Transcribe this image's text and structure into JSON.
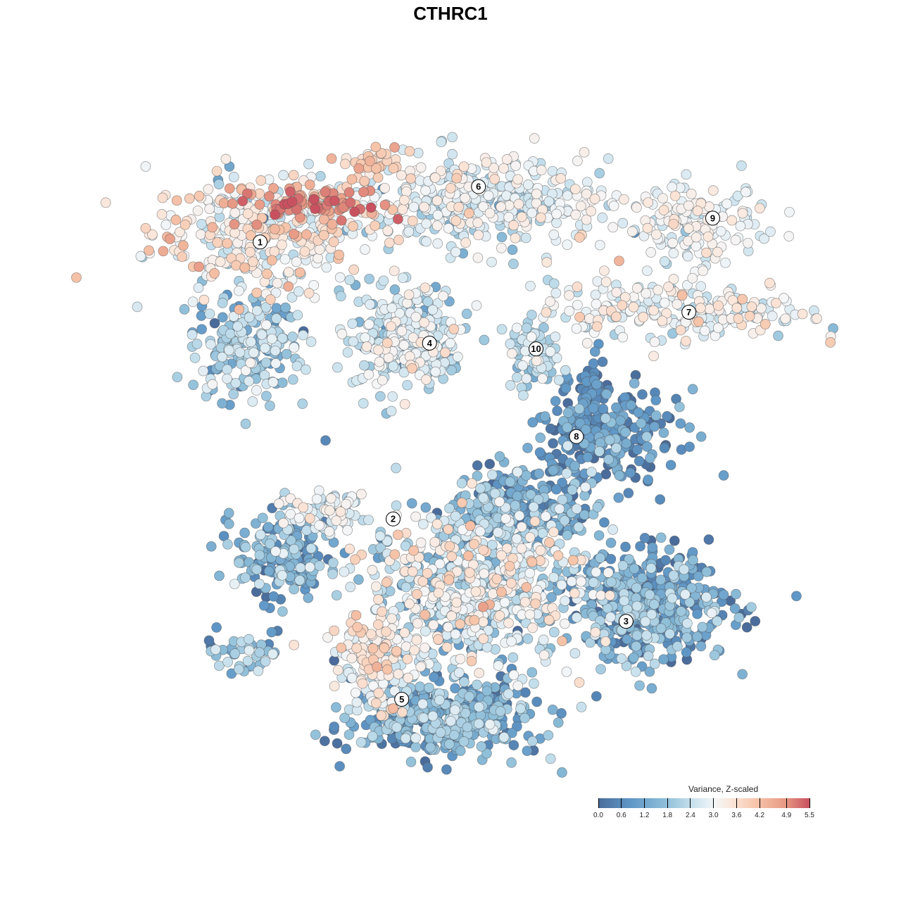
{
  "chart_data": {
    "type": "scatter",
    "title": "CTHRC1",
    "xlabel": "",
    "ylabel": "",
    "xlim": [
      -50,
      50
    ],
    "ylim": [
      -50,
      50
    ],
    "grid": false,
    "colorbar": {
      "title": "Variance, Z-scaled",
      "min": 0.0,
      "max": 5.5,
      "ticks": [
        0.0,
        0.6,
        1.2,
        1.8,
        2.4,
        3.0,
        3.6,
        4.2,
        4.9,
        5.5
      ],
      "tick_labels": [
        "0.0",
        "0.6",
        "1.2",
        "1.8",
        "2.4",
        "3.0",
        "3.6",
        "4.2",
        "4.9",
        "5.5"
      ],
      "placement": "bottom-right",
      "colors": [
        "#4a6c9b",
        "#5e96c6",
        "#8fbfd9",
        "#c9e2ee",
        "#f4f6f8",
        "#fbe6da",
        "#f6c4a9",
        "#e89b86",
        "#c9515f"
      ]
    },
    "cluster_labels": [
      {
        "label": "1",
        "x": -30.9,
        "y": 32.1
      },
      {
        "label": "2",
        "x": -10.8,
        "y": -10.9
      },
      {
        "label": "3",
        "x": 24.4,
        "y": -26.8
      },
      {
        "label": "4",
        "x": -5.3,
        "y": 16.4
      },
      {
        "label": "5",
        "x": -9.5,
        "y": -38.9
      },
      {
        "label": "6",
        "x": 2.1,
        "y": 40.7
      },
      {
        "label": "7",
        "x": 33.9,
        "y": 21.2
      },
      {
        "label": "8",
        "x": 16.9,
        "y": 1.9
      },
      {
        "label": "9",
        "x": 37.5,
        "y": 35.8
      },
      {
        "label": "10",
        "x": 10.8,
        "y": 15.5
      }
    ],
    "point_groups": [
      {
        "cx": -30.9,
        "cy": 33.6,
        "sx": 11.7,
        "sy": 6.5,
        "n": 350,
        "mean": 3.0,
        "sd": 0.8
      },
      {
        "cx": -23.4,
        "cy": 38.0,
        "sx": 8,
        "sy": 2,
        "n": 80,
        "mean": 4.8,
        "sd": 0.5
      },
      {
        "cx": -33,
        "cy": 16.1,
        "sx": 6,
        "sy": 6,
        "n": 200,
        "mean": 1.5,
        "sd": 0.6
      },
      {
        "cx": -13.8,
        "cy": 44.5,
        "sx": 3,
        "sy": 2,
        "n": 40,
        "mean": 3.8,
        "sd": 0.4
      },
      {
        "cx": 2.1,
        "cy": 38,
        "sx": 14,
        "sy": 5,
        "n": 400,
        "mean": 2.4,
        "sd": 0.6
      },
      {
        "cx": -8.5,
        "cy": 17.2,
        "sx": 6,
        "sy": 6,
        "n": 300,
        "mean": 2.2,
        "sd": 0.6
      },
      {
        "cx": 35.1,
        "cy": 34.7,
        "sx": 8,
        "sy": 4,
        "n": 150,
        "mean": 2.6,
        "sd": 0.5
      },
      {
        "cx": 31.9,
        "cy": 21.6,
        "sx": 14,
        "sy": 3.5,
        "n": 220,
        "mean": 2.7,
        "sd": 0.6
      },
      {
        "cx": 10.6,
        "cy": 15,
        "sx": 3,
        "sy": 4,
        "n": 80,
        "mean": 1.8,
        "sd": 0.5
      },
      {
        "cx": 21.3,
        "cy": 1.9,
        "sx": 8,
        "sy": 5,
        "n": 250,
        "mean": 0.6,
        "sd": 0.5
      },
      {
        "cx": 19.1,
        "cy": 8.5,
        "sx": 2,
        "sy": 4,
        "n": 60,
        "mean": 0.4,
        "sd": 0.3
      },
      {
        "cx": -27.7,
        "cy": -16.7,
        "sx": 5,
        "sy": 6,
        "n": 180,
        "mean": 1.0,
        "sd": 0.6
      },
      {
        "cx": -21.3,
        "cy": -10.1,
        "sx": 4,
        "sy": 2,
        "n": 80,
        "mean": 2.4,
        "sd": 0.5
      },
      {
        "cx": 2.1,
        "cy": -21,
        "sx": 12,
        "sy": 9,
        "n": 700,
        "mean": 2.2,
        "sd": 0.9
      },
      {
        "cx": 27.7,
        "cy": -24.3,
        "sx": 9,
        "sy": 6,
        "n": 450,
        "mean": 0.9,
        "sd": 0.6
      },
      {
        "cx": -3.2,
        "cy": -41.8,
        "sx": 10,
        "sy": 4,
        "n": 450,
        "mean": 1.0,
        "sd": 0.6
      },
      {
        "cx": -13.8,
        "cy": -33,
        "sx": 4,
        "sy": 5,
        "n": 150,
        "mean": 2.9,
        "sd": 0.6
      },
      {
        "cx": 8.5,
        "cy": -9,
        "sx": 8,
        "sy": 4,
        "n": 250,
        "mean": 1.0,
        "sd": 0.6
      },
      {
        "cx": -34,
        "cy": -32,
        "sx": 4,
        "sy": 2,
        "n": 40,
        "mean": 1.5,
        "sd": 0.6
      }
    ]
  }
}
